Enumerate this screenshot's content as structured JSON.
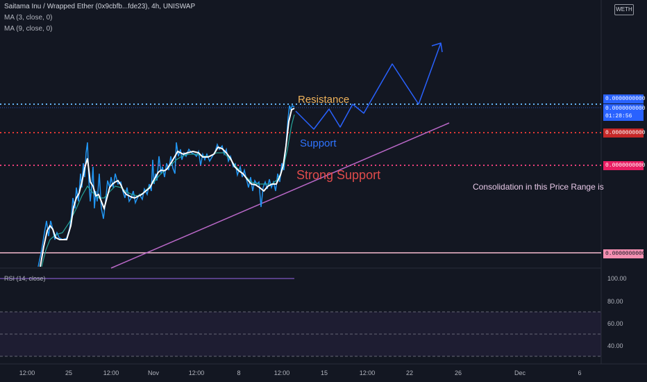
{
  "header": {
    "title": "Saitama Inu / Wrapped Ether (0x9cbfb...fde23), 4h, UNISWAP",
    "ma3": "MA (3, close, 0)",
    "ma9": "MA (9, close, 0)"
  },
  "symbol_badge": "WETH",
  "price_labels": {
    "resistance": "0.0000000000",
    "current": "0.0000000000",
    "countdown": "01:28:56",
    "support": "0.0000000000",
    "strong_support": "0.0000000000",
    "base": "0.0000000000"
  },
  "annotations": {
    "resistance": "Resistance",
    "support": "Support",
    "strong_support": "Strong Support",
    "consolidation": "Consolidation in this Price Range is"
  },
  "rsi": {
    "label": "RSI (14, close)",
    "ticks": [
      "100.00",
      "80.00",
      "60.00",
      "40.00"
    ]
  },
  "x_axis": [
    "12:00",
    "25",
    "12:00",
    "Nov",
    "12:00",
    "8",
    "12:00",
    "15",
    "12:00",
    "22",
    "26",
    "Dec",
    "6"
  ],
  "colors": {
    "background": "#131722",
    "price_line": "#2196f3",
    "ma3": "#ffffff",
    "ma9": "#26a69a",
    "resistance": "#64b5f6",
    "support": "#e53935",
    "strong_support": "#ec407a",
    "trendline": "#ba68c8",
    "projection": "#2962ff",
    "base_line": "#f8bbd0"
  }
}
